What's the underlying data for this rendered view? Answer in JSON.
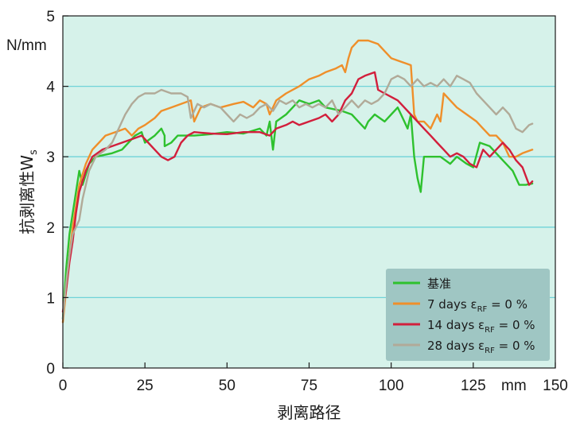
{
  "chart_data": {
    "type": "line",
    "title": "",
    "xlabel": "剥离路径",
    "ylabel": "抗剥离性W",
    "ylabel_sub": "s",
    "yunit": "N/mm",
    "xunit": "mm",
    "xlim": [
      0,
      150
    ],
    "ylim": [
      0,
      5
    ],
    "xticks": [
      "0",
      "25",
      "50",
      "75",
      "100",
      "125",
      "150"
    ],
    "yticks": [
      "0",
      "1",
      "2",
      "3",
      "4",
      "5"
    ],
    "grid": "horizontal",
    "legend_position": "bottom-right",
    "colors": {
      "plot_bg": "#d6f2ea",
      "grid": "#6fd3d8",
      "legend_bg": "#9fc6c3"
    },
    "series": [
      {
        "name": "基准",
        "legend_label": {
          "text": "基准",
          "subscript": "",
          "suffix": ""
        },
        "color": "#2ec12e",
        "points": [
          [
            0,
            0.7
          ],
          [
            1,
            1.4
          ],
          [
            2,
            1.9
          ],
          [
            3,
            2.2
          ],
          [
            4,
            2.5
          ],
          [
            5,
            2.8
          ],
          [
            6,
            2.6
          ],
          [
            8,
            2.9
          ],
          [
            10,
            3.0
          ],
          [
            15,
            3.05
          ],
          [
            18,
            3.1
          ],
          [
            20,
            3.2
          ],
          [
            22,
            3.3
          ],
          [
            24,
            3.35
          ],
          [
            25,
            3.2
          ],
          [
            28,
            3.3
          ],
          [
            30,
            3.4
          ],
          [
            31,
            3.3
          ],
          [
            31,
            3.15
          ],
          [
            33,
            3.2
          ],
          [
            35,
            3.3
          ],
          [
            40,
            3.3
          ],
          [
            45,
            3.32
          ],
          [
            50,
            3.35
          ],
          [
            55,
            3.33
          ],
          [
            60,
            3.4
          ],
          [
            62,
            3.3
          ],
          [
            63,
            3.5
          ],
          [
            64,
            3.1
          ],
          [
            65,
            3.5
          ],
          [
            68,
            3.6
          ],
          [
            70,
            3.7
          ],
          [
            72,
            3.8
          ],
          [
            75,
            3.75
          ],
          [
            78,
            3.8
          ],
          [
            80,
            3.7
          ],
          [
            85,
            3.65
          ],
          [
            88,
            3.6
          ],
          [
            90,
            3.5
          ],
          [
            92,
            3.4
          ],
          [
            93,
            3.5
          ],
          [
            95,
            3.6
          ],
          [
            98,
            3.5
          ],
          [
            100,
            3.6
          ],
          [
            102,
            3.7
          ],
          [
            104,
            3.5
          ],
          [
            105,
            3.4
          ],
          [
            106,
            3.6
          ],
          [
            107,
            3.0
          ],
          [
            108,
            2.7
          ],
          [
            109,
            2.5
          ],
          [
            110,
            3.0
          ],
          [
            112,
            3.0
          ],
          [
            115,
            3.0
          ],
          [
            118,
            2.9
          ],
          [
            120,
            3.0
          ],
          [
            123,
            2.9
          ],
          [
            125,
            2.85
          ],
          [
            127,
            3.2
          ],
          [
            130,
            3.15
          ],
          [
            133,
            3.0
          ],
          [
            135,
            2.9
          ],
          [
            137,
            2.8
          ],
          [
            139,
            2.6
          ],
          [
            141,
            2.6
          ],
          [
            143,
            2.62
          ]
        ]
      },
      {
        "name": "7 days εRF = 0 %",
        "legend_label": {
          "text": "7 days ε",
          "subscript": "RF",
          "suffix": " = 0 %"
        },
        "color": "#ef8f2a",
        "points": [
          [
            0,
            0.65
          ],
          [
            1,
            1.1
          ],
          [
            2,
            1.6
          ],
          [
            3,
            2.0
          ],
          [
            4,
            2.3
          ],
          [
            5,
            2.6
          ],
          [
            7,
            2.9
          ],
          [
            9,
            3.1
          ],
          [
            11,
            3.2
          ],
          [
            13,
            3.3
          ],
          [
            16,
            3.35
          ],
          [
            19,
            3.4
          ],
          [
            21,
            3.3
          ],
          [
            23,
            3.4
          ],
          [
            25,
            3.45
          ],
          [
            28,
            3.55
          ],
          [
            30,
            3.65
          ],
          [
            33,
            3.7
          ],
          [
            36,
            3.75
          ],
          [
            39,
            3.8
          ],
          [
            40,
            3.5
          ],
          [
            42,
            3.7
          ],
          [
            45,
            3.75
          ],
          [
            48,
            3.7
          ],
          [
            52,
            3.75
          ],
          [
            55,
            3.78
          ],
          [
            58,
            3.7
          ],
          [
            60,
            3.8
          ],
          [
            62,
            3.75
          ],
          [
            63,
            3.6
          ],
          [
            65,
            3.8
          ],
          [
            68,
            3.9
          ],
          [
            72,
            4.0
          ],
          [
            75,
            4.1
          ],
          [
            78,
            4.15
          ],
          [
            80,
            4.2
          ],
          [
            83,
            4.25
          ],
          [
            85,
            4.3
          ],
          [
            86,
            4.2
          ],
          [
            87,
            4.4
          ],
          [
            88,
            4.55
          ],
          [
            90,
            4.65
          ],
          [
            93,
            4.65
          ],
          [
            96,
            4.6
          ],
          [
            98,
            4.5
          ],
          [
            100,
            4.4
          ],
          [
            103,
            4.35
          ],
          [
            106,
            4.3
          ],
          [
            107,
            3.6
          ],
          [
            108,
            3.5
          ],
          [
            110,
            3.5
          ],
          [
            112,
            3.4
          ],
          [
            114,
            3.6
          ],
          [
            115,
            3.5
          ],
          [
            116,
            3.9
          ],
          [
            118,
            3.8
          ],
          [
            120,
            3.7
          ],
          [
            123,
            3.6
          ],
          [
            126,
            3.5
          ],
          [
            128,
            3.4
          ],
          [
            130,
            3.3
          ],
          [
            132,
            3.3
          ],
          [
            134,
            3.2
          ],
          [
            136,
            3.0
          ],
          [
            138,
            3.0
          ],
          [
            140,
            3.05
          ],
          [
            143,
            3.1
          ]
        ]
      },
      {
        "name": "14 days εRF = 0 %",
        "legend_label": {
          "text": "14 days ε",
          "subscript": "RF",
          "suffix": " = 0 %"
        },
        "color": "#d21f3c",
        "points": [
          [
            0,
            0.8
          ],
          [
            1,
            1.1
          ],
          [
            2,
            1.5
          ],
          [
            3,
            1.8
          ],
          [
            4,
            2.2
          ],
          [
            5,
            2.5
          ],
          [
            7,
            2.8
          ],
          [
            9,
            3.0
          ],
          [
            12,
            3.1
          ],
          [
            15,
            3.15
          ],
          [
            18,
            3.2
          ],
          [
            21,
            3.25
          ],
          [
            24,
            3.3
          ],
          [
            26,
            3.2
          ],
          [
            28,
            3.1
          ],
          [
            30,
            3.0
          ],
          [
            32,
            2.95
          ],
          [
            34,
            3.0
          ],
          [
            36,
            3.2
          ],
          [
            38,
            3.3
          ],
          [
            40,
            3.35
          ],
          [
            45,
            3.33
          ],
          [
            50,
            3.32
          ],
          [
            55,
            3.35
          ],
          [
            60,
            3.35
          ],
          [
            63,
            3.3
          ],
          [
            65,
            3.4
          ],
          [
            68,
            3.45
          ],
          [
            70,
            3.5
          ],
          [
            72,
            3.45
          ],
          [
            75,
            3.5
          ],
          [
            78,
            3.55
          ],
          [
            80,
            3.6
          ],
          [
            82,
            3.5
          ],
          [
            84,
            3.6
          ],
          [
            86,
            3.8
          ],
          [
            88,
            3.9
          ],
          [
            90,
            4.1
          ],
          [
            92,
            4.15
          ],
          [
            95,
            4.2
          ],
          [
            96,
            3.95
          ],
          [
            98,
            3.9
          ],
          [
            100,
            3.85
          ],
          [
            102,
            3.8
          ],
          [
            104,
            3.7
          ],
          [
            106,
            3.6
          ],
          [
            108,
            3.5
          ],
          [
            110,
            3.4
          ],
          [
            112,
            3.3
          ],
          [
            114,
            3.2
          ],
          [
            116,
            3.1
          ],
          [
            118,
            3.0
          ],
          [
            120,
            3.05
          ],
          [
            122,
            3.0
          ],
          [
            124,
            2.9
          ],
          [
            126,
            2.85
          ],
          [
            128,
            3.1
          ],
          [
            130,
            3.0
          ],
          [
            132,
            3.1
          ],
          [
            134,
            3.2
          ],
          [
            136,
            3.1
          ],
          [
            138,
            2.95
          ],
          [
            140,
            2.85
          ],
          [
            142,
            2.6
          ],
          [
            143,
            2.65
          ]
        ]
      },
      {
        "name": "28 days εRF = 0 %",
        "legend_label": {
          "text": "28 days ε",
          "subscript": "RF",
          "suffix": " = 0 %"
        },
        "color": "#b1aa98",
        "points": [
          [
            0,
            0.7
          ],
          [
            1,
            1.2
          ],
          [
            2,
            1.6
          ],
          [
            3,
            1.9
          ],
          [
            4,
            2.0
          ],
          [
            5,
            2.1
          ],
          [
            6,
            2.4
          ],
          [
            8,
            2.8
          ],
          [
            10,
            3.0
          ],
          [
            13,
            3.1
          ],
          [
            15,
            3.2
          ],
          [
            17,
            3.4
          ],
          [
            19,
            3.6
          ],
          [
            21,
            3.75
          ],
          [
            23,
            3.85
          ],
          [
            25,
            3.9
          ],
          [
            28,
            3.9
          ],
          [
            30,
            3.95
          ],
          [
            33,
            3.9
          ],
          [
            36,
            3.9
          ],
          [
            38,
            3.85
          ],
          [
            39,
            3.55
          ],
          [
            41,
            3.75
          ],
          [
            43,
            3.7
          ],
          [
            45,
            3.75
          ],
          [
            48,
            3.7
          ],
          [
            50,
            3.6
          ],
          [
            52,
            3.5
          ],
          [
            54,
            3.6
          ],
          [
            56,
            3.55
          ],
          [
            58,
            3.6
          ],
          [
            60,
            3.7
          ],
          [
            62,
            3.75
          ],
          [
            64,
            3.65
          ],
          [
            66,
            3.8
          ],
          [
            68,
            3.75
          ],
          [
            70,
            3.8
          ],
          [
            72,
            3.7
          ],
          [
            74,
            3.75
          ],
          [
            76,
            3.7
          ],
          [
            78,
            3.75
          ],
          [
            80,
            3.7
          ],
          [
            82,
            3.8
          ],
          [
            84,
            3.6
          ],
          [
            86,
            3.7
          ],
          [
            88,
            3.8
          ],
          [
            90,
            3.7
          ],
          [
            92,
            3.8
          ],
          [
            94,
            3.75
          ],
          [
            96,
            3.8
          ],
          [
            98,
            3.9
          ],
          [
            100,
            4.1
          ],
          [
            102,
            4.15
          ],
          [
            104,
            4.1
          ],
          [
            106,
            4.0
          ],
          [
            108,
            4.1
          ],
          [
            110,
            4.0
          ],
          [
            112,
            4.05
          ],
          [
            114,
            4.0
          ],
          [
            116,
            4.1
          ],
          [
            118,
            4.0
          ],
          [
            120,
            4.15
          ],
          [
            122,
            4.1
          ],
          [
            124,
            4.05
          ],
          [
            126,
            3.9
          ],
          [
            128,
            3.8
          ],
          [
            130,
            3.7
          ],
          [
            132,
            3.6
          ],
          [
            134,
            3.7
          ],
          [
            136,
            3.6
          ],
          [
            138,
            3.4
          ],
          [
            140,
            3.35
          ],
          [
            142,
            3.45
          ],
          [
            143,
            3.47
          ]
        ]
      }
    ]
  }
}
